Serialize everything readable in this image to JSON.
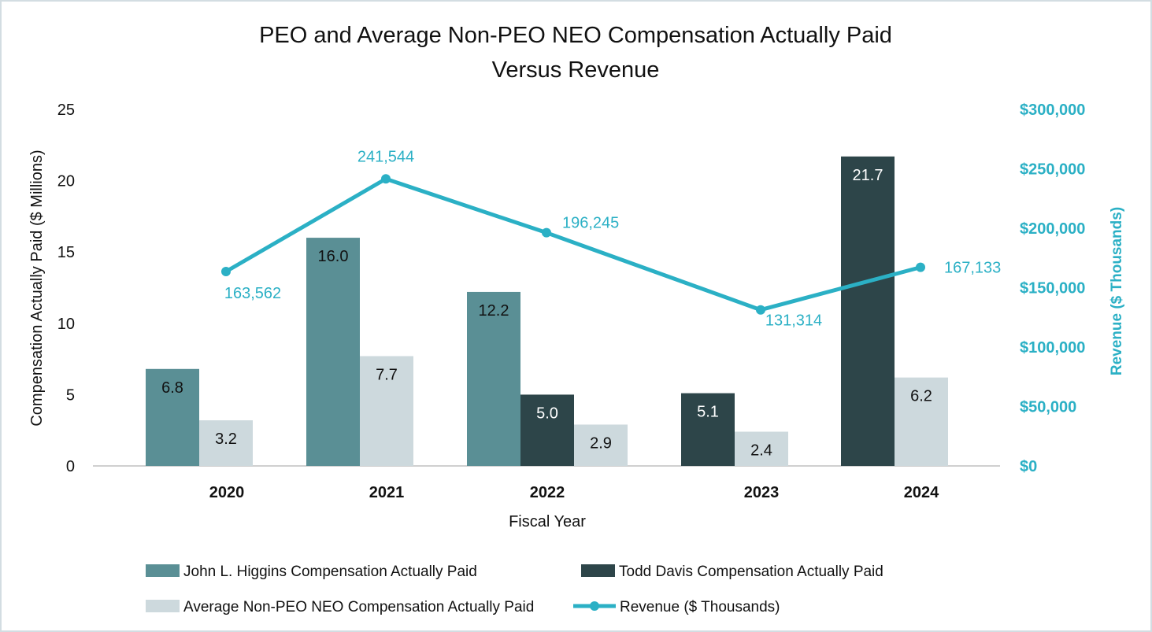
{
  "chart_data": {
    "type": "bar+line",
    "title_line1": "PEO and Average Non-PEO NEO Compensation Actually Paid",
    "title_line2": "Versus Revenue",
    "xlabel": "Fiscal Year",
    "ylabel": "Compensation Actually Paid ($ Millions)",
    "y2label": "Revenue ($ Thousands)",
    "ylim": [
      0,
      25
    ],
    "yticks": [
      "0",
      "5",
      "10",
      "15",
      "20",
      "25"
    ],
    "y2lim": [
      0,
      300000
    ],
    "y2ticks": [
      "$0",
      "$50,000",
      "$100,000",
      "$150,000",
      "$200,000",
      "$250,000",
      "$300,000"
    ],
    "categories": [
      "2020",
      "2021",
      "2022",
      "2023",
      "2024"
    ],
    "grid": false,
    "legend_placement": "bottom",
    "series": [
      {
        "name": "John L. Higgins Compensation Actually Paid",
        "kind": "bar",
        "color": "#5a8f95",
        "values": [
          6.8,
          16.0,
          12.2,
          null,
          null
        ],
        "labels": [
          "6.8",
          "16.0",
          "12.2",
          "",
          ""
        ]
      },
      {
        "name": "Todd Davis Compensation Actually Paid",
        "kind": "bar",
        "color": "#2d4549",
        "values": [
          null,
          null,
          5.0,
          5.1,
          21.7
        ],
        "labels": [
          "",
          "",
          "5.0",
          "5.1",
          "21.7"
        ]
      },
      {
        "name": "Average Non-PEO NEO Compensation Actually Paid",
        "kind": "bar",
        "color": "#cdd9dd",
        "values": [
          3.2,
          7.7,
          2.9,
          2.4,
          6.2
        ],
        "labels": [
          "3.2",
          "7.7",
          "2.9",
          "2.4",
          "6.2"
        ]
      },
      {
        "name": "Revenue ($ Thousands)",
        "kind": "line",
        "axis": "right",
        "color": "#2bb0c5",
        "values": [
          163562,
          241544,
          196245,
          131314,
          167133
        ],
        "labels": [
          "163,562",
          "241,544",
          "196,245",
          "131,314",
          "167,133"
        ]
      }
    ]
  }
}
